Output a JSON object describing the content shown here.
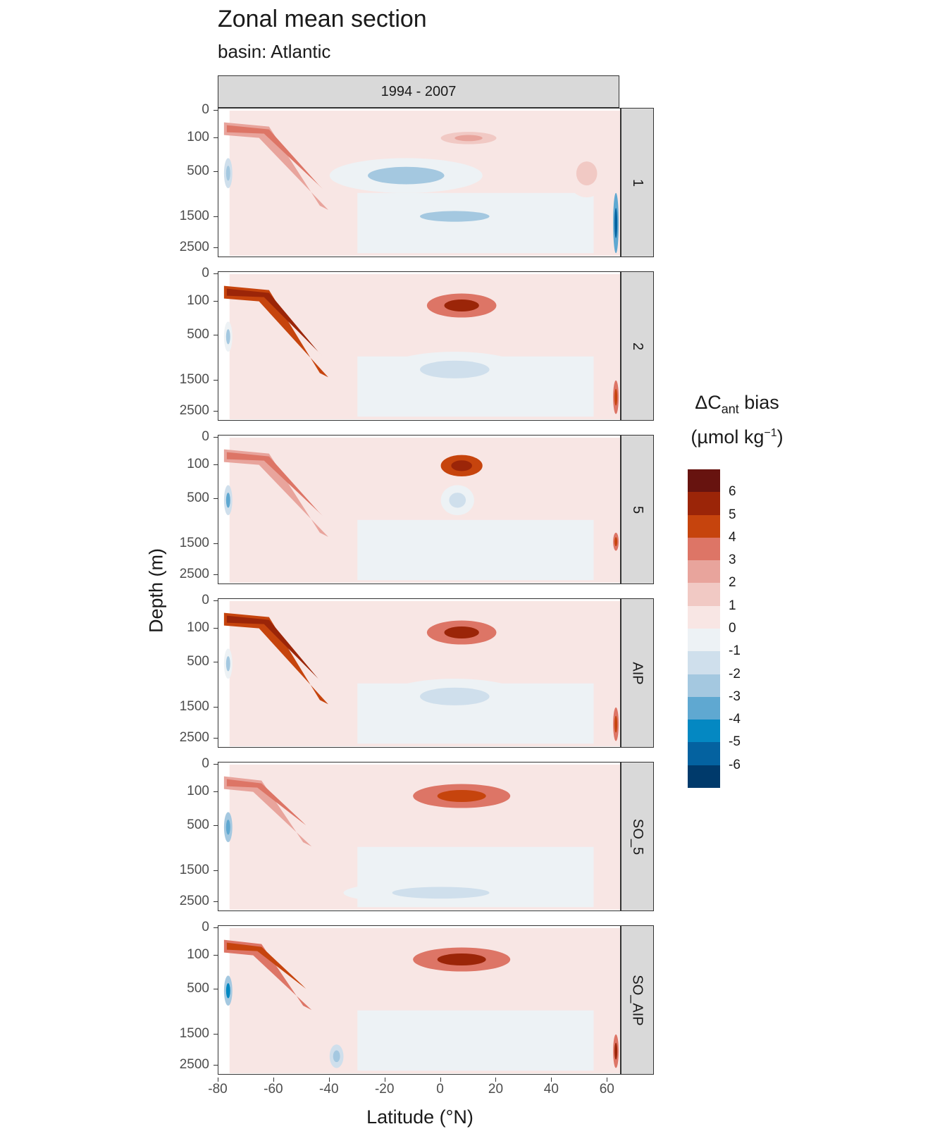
{
  "title": "Zonal mean section",
  "subtitle": "basin: Atlantic",
  "chart_data": {
    "type": "heatmap",
    "title": "Zonal mean section",
    "subtitle": "basin: Atlantic",
    "xlabel": "Latitude (°N)",
    "ylabel": "Depth (m)",
    "xlim": [
      -80,
      65
    ],
    "x_ticks": [
      "-80",
      "-60",
      "-40",
      "-20",
      "0",
      "20",
      "40",
      "60"
    ],
    "x_tick_values": [
      -80,
      -60,
      -40,
      -20,
      0,
      20,
      40,
      60
    ],
    "y_ticks": [
      "0",
      "100",
      "500",
      "1500",
      "2500"
    ],
    "y_tick_values": [
      0,
      100,
      500,
      1500,
      2500
    ],
    "y_scale": "reversed sqrt",
    "column_facet": "1994 - 2007",
    "row_facets": [
      "1",
      "2",
      "5",
      "AIP",
      "SO_5",
      "SO_AIP"
    ],
    "legend": {
      "title_main": "ΔC",
      "title_sub": "ant",
      "title_rest": " bias",
      "unit_pre": "(µmol kg",
      "unit_sup": "−1",
      "unit_post": ")",
      "placement": "right",
      "breaks": [
        "6",
        "5",
        "4",
        "3",
        "2",
        "1",
        "0",
        "-1",
        "-2",
        "-3",
        "-4",
        "-5",
        "-6"
      ],
      "colors": [
        "#67130f",
        "#9b2508",
        "#c6440d",
        "#dd7566",
        "#e8a49c",
        "#f1c9c4",
        "#f8e6e4",
        "#edf2f5",
        "#cfdfec",
        "#a4c8e0",
        "#5fa8d1",
        "#0488c2",
        "#0462a0",
        "#003a6b"
      ]
    },
    "panels": [
      {
        "name": "1",
        "features": [
          {
            "type": "band",
            "lat": [
              -78,
              -42
            ],
            "depth": [
              40,
              1200
            ],
            "value": 2.5
          },
          {
            "type": "blob",
            "lat": [
              -40,
              15
            ],
            "depth": [
              300,
              900
            ],
            "value": -2.2
          },
          {
            "type": "blob",
            "lat": [
              -20,
              30
            ],
            "depth": [
              1200,
              1800
            ],
            "value": -2
          },
          {
            "type": "blob",
            "lat": [
              0,
              20
            ],
            "depth": [
              60,
              150
            ],
            "value": 3
          },
          {
            "type": "blob",
            "lat": [
              45,
              60
            ],
            "depth": [
              200,
              1000
            ],
            "value": 2
          },
          {
            "type": "blob",
            "lat": [
              62,
              64
            ],
            "depth": [
              900,
              2700
            ],
            "value": -5
          },
          {
            "type": "blob",
            "lat": [
              -78,
              -75
            ],
            "depth": [
              300,
              800
            ],
            "value": -2.5
          }
        ]
      },
      {
        "name": "2",
        "features": [
          {
            "type": "band",
            "lat": [
              -78,
              -42
            ],
            "depth": [
              40,
              1300
            ],
            "value": 4.5
          },
          {
            "type": "blob",
            "lat": [
              -5,
              20
            ],
            "depth": [
              50,
              250
            ],
            "value": 5.5
          },
          {
            "type": "blob",
            "lat": [
              -20,
              30
            ],
            "depth": [
              800,
              1700
            ],
            "value": -1.5
          },
          {
            "type": "blob",
            "lat": [
              62,
              64
            ],
            "depth": [
              1500,
              2600
            ],
            "value": 5
          },
          {
            "type": "blob",
            "lat": [
              -78,
              -75
            ],
            "depth": [
              300,
              800
            ],
            "value": -2
          }
        ]
      },
      {
        "name": "5",
        "features": [
          {
            "type": "band",
            "lat": [
              -78,
              -42
            ],
            "depth": [
              40,
              1200
            ],
            "value": 2.5
          },
          {
            "type": "blob",
            "lat": [
              0,
              15
            ],
            "depth": [
              40,
              200
            ],
            "value": 6
          },
          {
            "type": "blob",
            "lat": [
              0,
              12
            ],
            "depth": [
              300,
              800
            ],
            "value": -1.5
          },
          {
            "type": "blob",
            "lat": [
              62,
              64
            ],
            "depth": [
              1200,
              1700
            ],
            "value": 5
          },
          {
            "type": "blob",
            "lat": [
              -78,
              -75
            ],
            "depth": [
              300,
              800
            ],
            "value": -3
          }
        ]
      },
      {
        "name": "AIP",
        "features": [
          {
            "type": "band",
            "lat": [
              -78,
              -42
            ],
            "depth": [
              40,
              1300
            ],
            "value": 4.5
          },
          {
            "type": "blob",
            "lat": [
              -5,
              20
            ],
            "depth": [
              50,
              250
            ],
            "value": 5.5
          },
          {
            "type": "blob",
            "lat": [
              -20,
              30
            ],
            "depth": [
              800,
              1700
            ],
            "value": -1.5
          },
          {
            "type": "blob",
            "lat": [
              62,
              64
            ],
            "depth": [
              1500,
              2600
            ],
            "value": 5
          },
          {
            "type": "blob",
            "lat": [
              -78,
              -75
            ],
            "depth": [
              300,
              800
            ],
            "value": -2
          }
        ]
      },
      {
        "name": "SO_5",
        "features": [
          {
            "type": "band",
            "lat": [
              -78,
              -48
            ],
            "depth": [
              40,
              800
            ],
            "value": 3
          },
          {
            "type": "blob",
            "lat": [
              -10,
              25
            ],
            "depth": [
              50,
              250
            ],
            "value": 5
          },
          {
            "type": "blob",
            "lat": [
              -35,
              35
            ],
            "depth": [
              1800,
              2600
            ],
            "value": -1.2
          },
          {
            "type": "blob",
            "lat": [
              -78,
              -75
            ],
            "depth": [
              300,
              800
            ],
            "value": -3.5
          }
        ]
      },
      {
        "name": "SO_AIP",
        "features": [
          {
            "type": "band",
            "lat": [
              -78,
              -48
            ],
            "depth": [
              40,
              800
            ],
            "value": 3.5
          },
          {
            "type": "blob",
            "lat": [
              -10,
              25
            ],
            "depth": [
              50,
              250
            ],
            "value": 5.5
          },
          {
            "type": "blob",
            "lat": [
              -40,
              -35
            ],
            "depth": [
              1800,
              2600
            ],
            "value": -2.5
          },
          {
            "type": "blob",
            "lat": [
              62,
              64
            ],
            "depth": [
              1500,
              2600
            ],
            "value": 5.5
          },
          {
            "type": "blob",
            "lat": [
              -78,
              -75
            ],
            "depth": [
              300,
              800
            ],
            "value": -4
          }
        ]
      }
    ]
  }
}
